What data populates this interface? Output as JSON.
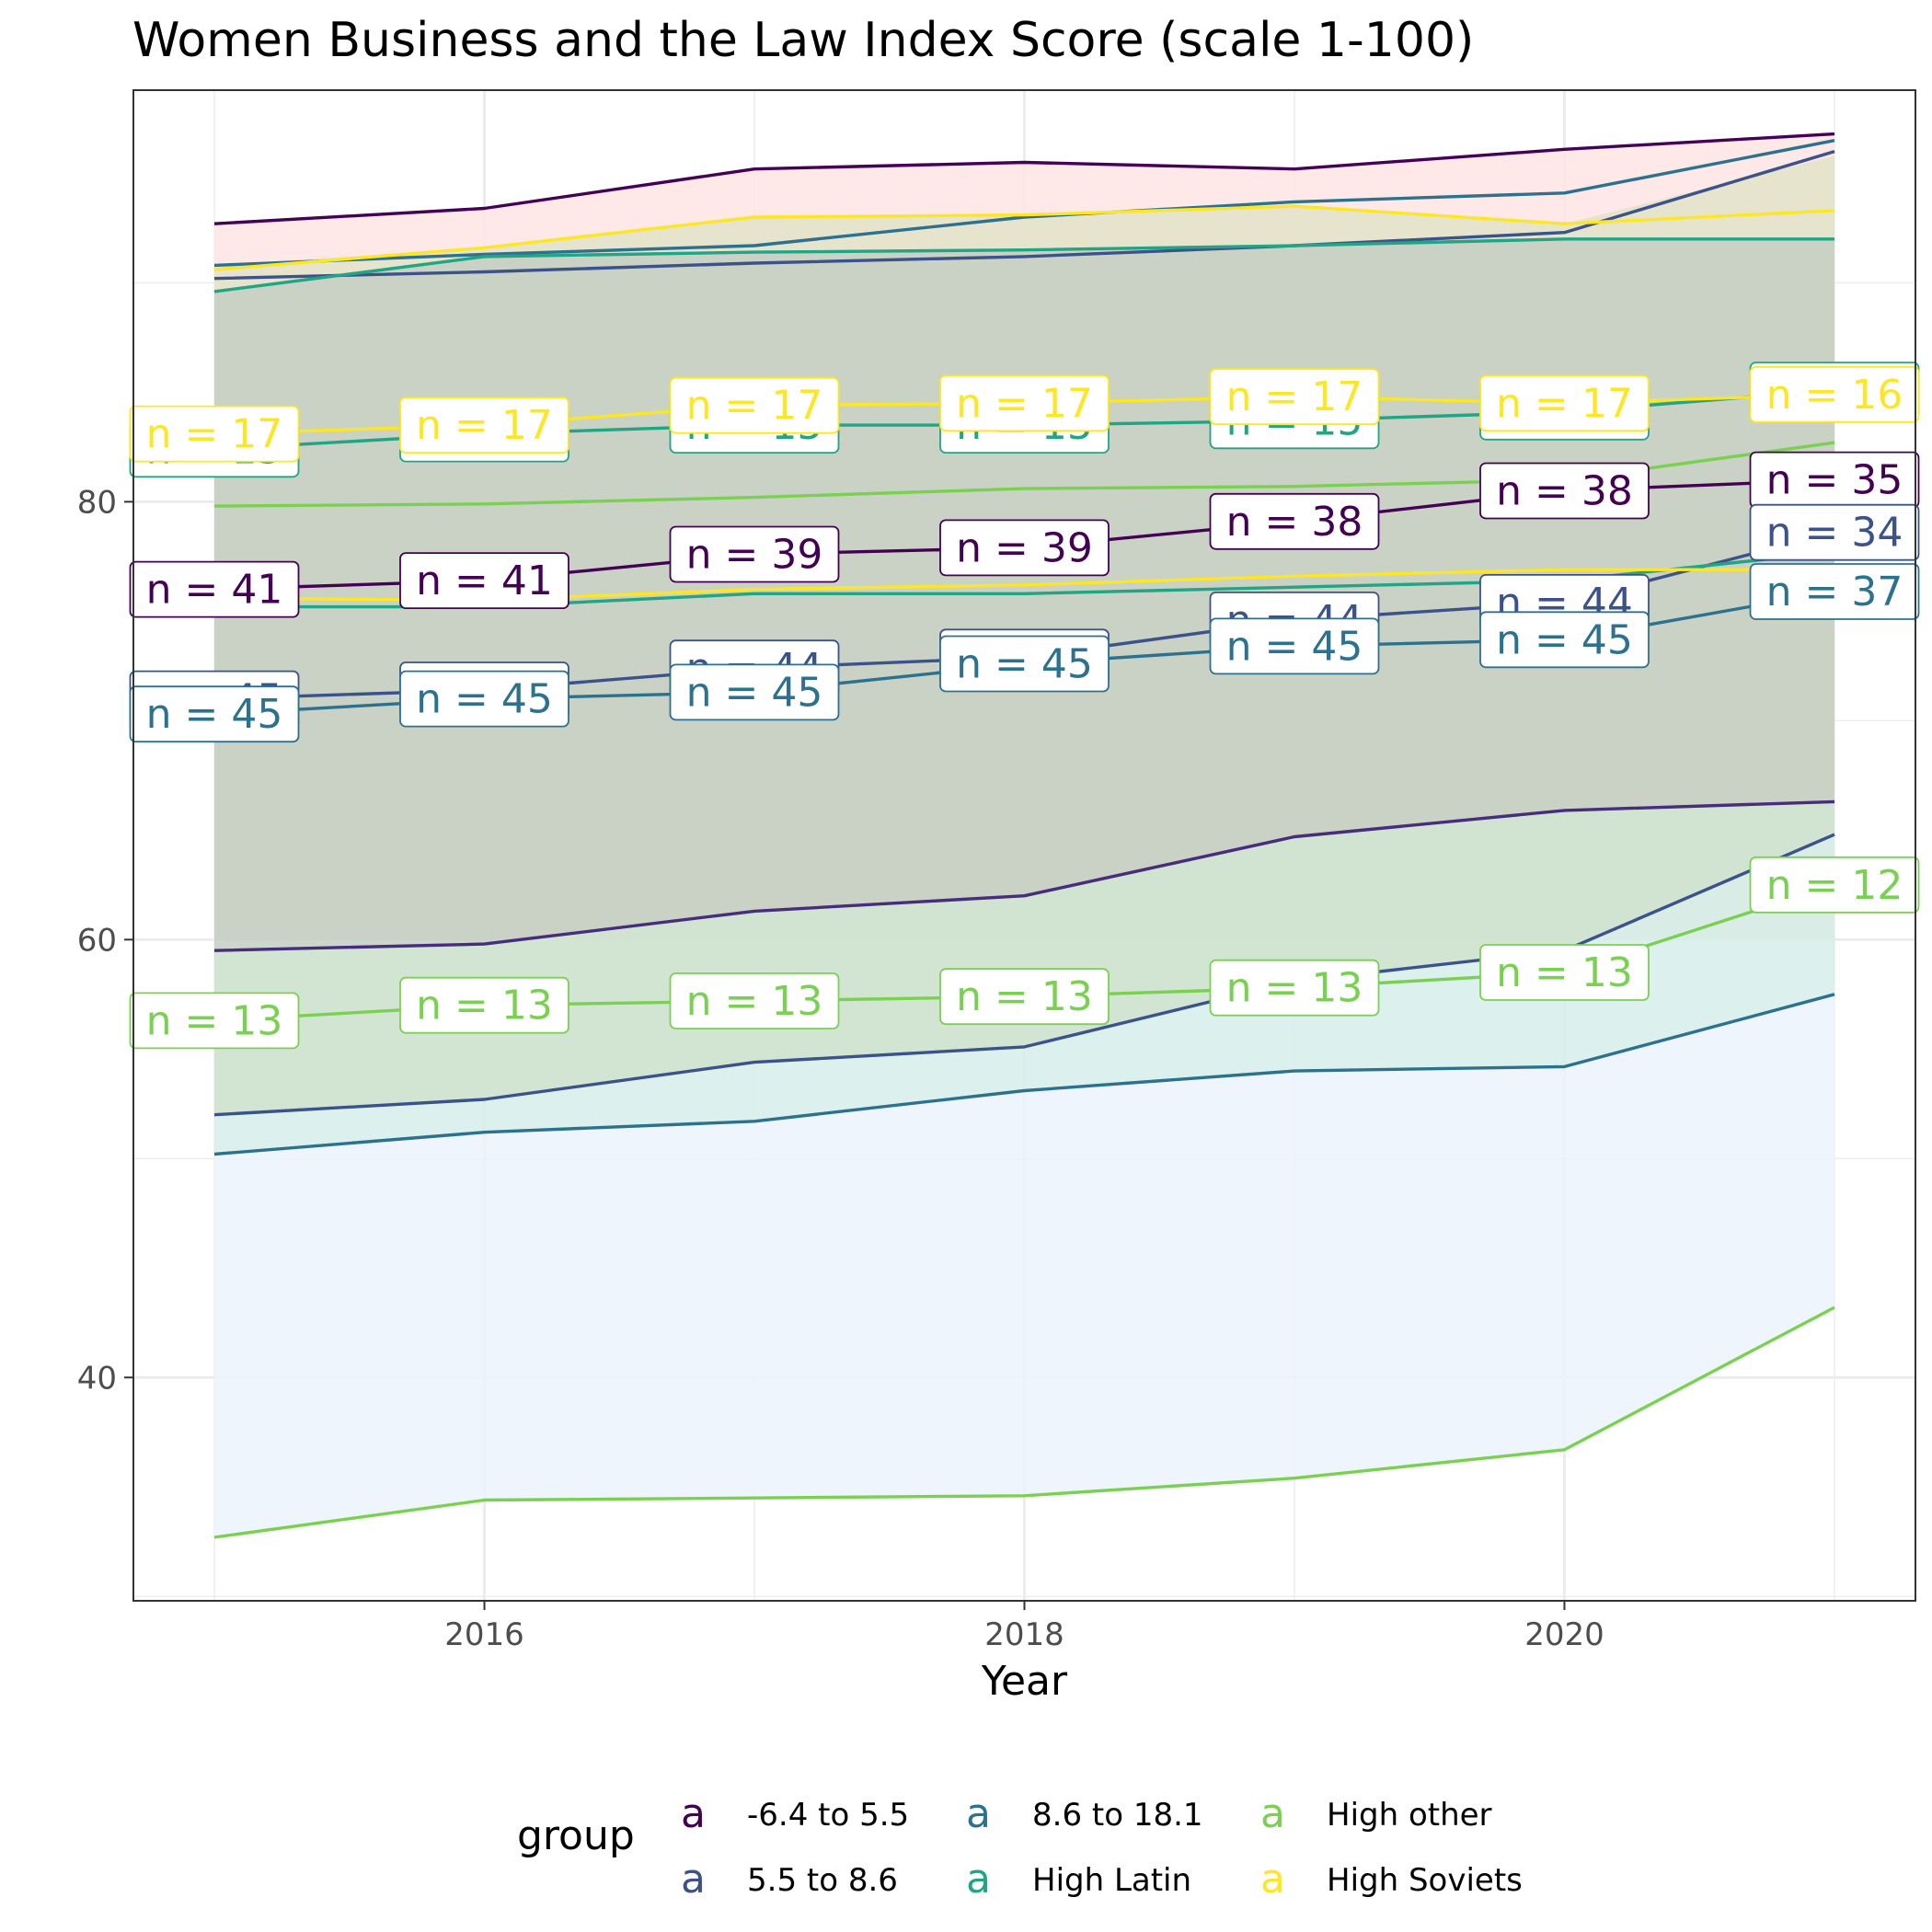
{
  "chart_data": {
    "type": "line",
    "title": "Women Business and the Law Index Score (scale 1-100)",
    "xlabel": "Year",
    "ylabel": "",
    "xlim": [
      2014.7,
      2021.3
    ],
    "ylim": [
      29.8,
      98.8
    ],
    "x_ticks": [
      2016,
      2018,
      2020
    ],
    "y_ticks": [
      40,
      60,
      80
    ],
    "grid": true,
    "legend": {
      "title": "group",
      "position": "bottom",
      "key_glyph": "a",
      "entries": [
        "-6.4 to 5.5",
        "5.5 to 8.6",
        "8.6 to 18.1",
        "High Latin",
        "High other",
        "High Soviets"
      ]
    },
    "x": [
      2015,
      2016,
      2017,
      2018,
      2019,
      2020,
      2021
    ],
    "ribbons": [
      {
        "color": "#FFE4E4",
        "upper": [
          92.7,
          93.4,
          95.2,
          95.5,
          95.2,
          96.1,
          96.8
        ],
        "lower": [
          60,
          60,
          60,
          60,
          60,
          60,
          60
        ]
      },
      {
        "color": "#E2E3C8",
        "upper": [
          90.8,
          91.6,
          93.0,
          93.1,
          93.5,
          92.7,
          95.8
        ],
        "lower": [
          60,
          60,
          60,
          60,
          60,
          60,
          60
        ]
      },
      {
        "color": "#C3CFC3",
        "upper": [
          89.6,
          91.2,
          91.4,
          91.5,
          91.7,
          92.0,
          92.0
        ],
        "lower": [
          52,
          52.7,
          54.4,
          55.1,
          58.1,
          59.5,
          64.8
        ]
      },
      {
        "color": "#D2E8D4",
        "upper": [
          59.5,
          59.8,
          61.3,
          62.0,
          64.7,
          65.9,
          66.3
        ],
        "lower": [
          52,
          52.7,
          54.4,
          55.1,
          58.1,
          59.5,
          64.8
        ]
      },
      {
        "color": "#D6EEEA",
        "upper": [
          52,
          52.7,
          54.4,
          55.1,
          58.1,
          59.5,
          64.8
        ],
        "lower": [
          50.2,
          51.2,
          51.7,
          53.1,
          54.0,
          54.2,
          57.5
        ]
      },
      {
        "color": "#ECF3FC",
        "upper": [
          50.2,
          51.2,
          51.7,
          53.1,
          54.0,
          54.2,
          57.5
        ],
        "lower": [
          32.7,
          34.4,
          34.5,
          34.6,
          35.4,
          36.7,
          43.2
        ]
      }
    ],
    "series": [
      {
        "group": "-6.4 to 5.5",
        "color": "#440154",
        "values": [
          92.7,
          93.4,
          95.2,
          95.5,
          95.2,
          96.1,
          96.8
        ]
      },
      {
        "group": "5.5 to 8.6",
        "color": "#3B528B",
        "values": [
          90.2,
          90.5,
          90.9,
          91.2,
          91.7,
          92.3,
          96.0
        ]
      },
      {
        "group": "8.6 to 18.1",
        "color": "#2C728E",
        "values": [
          90.8,
          91.3,
          91.7,
          93.0,
          93.7,
          94.1,
          96.5
        ]
      },
      {
        "group": "High Latin",
        "color": "#21A585",
        "values": [
          89.6,
          91.2,
          91.4,
          91.5,
          91.7,
          92.0,
          92.0
        ]
      },
      {
        "group": "High Soviets",
        "color": "#FDE725",
        "values": [
          90.6,
          91.6,
          93.0,
          93.1,
          93.5,
          92.7,
          93.3
        ]
      },
      {
        "group": "-6.4 to 5.5",
        "color": "#440154",
        "values": [
          76.0,
          76.4,
          77.6,
          77.9,
          79.1,
          80.5,
          81.0
        ],
        "labels": [
          "n = 41",
          "n = 41",
          "n = 39",
          "n = 39",
          "n = 38",
          "n = 38",
          "n = 35"
        ]
      },
      {
        "group": "5.5 to 8.6",
        "color": "#3B528B",
        "values": [
          71.0,
          71.4,
          72.4,
          72.9,
          74.6,
          75.4,
          78.6
        ],
        "labels": [
          "n = 45",
          "n = 45",
          "n = 44",
          "n = 45",
          "n = 44",
          "n = 44",
          "n = 34"
        ]
      },
      {
        "group": "8.6 to 18.1",
        "color": "#2C728E",
        "values": [
          70.3,
          71.0,
          71.3,
          72.6,
          73.4,
          73.7,
          75.9
        ],
        "labels": [
          "n = 45",
          "n = 45",
          "n = 45",
          "n = 45",
          "n = 45",
          "n = 45",
          "n = 37"
        ]
      },
      {
        "group": "High Latin",
        "color": "#21A585",
        "values": [
          82.4,
          83.1,
          83.5,
          83.5,
          83.7,
          84.1,
          85.1
        ],
        "labels": [
          "n = 15",
          "n = 15",
          "n = 15",
          "n = 15",
          "n = 15",
          "n = 15",
          "n = 16"
        ]
      },
      {
        "group": "High Latin",
        "color": "#21A585",
        "values": [
          75.2,
          75.2,
          75.8,
          75.8,
          76.1,
          76.4,
          77.7
        ]
      },
      {
        "group": "High other",
        "color": "#7AD151",
        "values": [
          79.8,
          79.9,
          80.2,
          80.6,
          80.7,
          81.0,
          82.7
        ]
      },
      {
        "group": "High Soviets",
        "color": "#FDE725",
        "values": [
          83.1,
          83.5,
          84.4,
          84.5,
          84.8,
          84.5,
          84.9
        ],
        "labels": [
          "n = 17",
          "n = 17",
          "n = 17",
          "n = 17",
          "n = 17",
          "n = 17",
          "n = 16"
        ]
      },
      {
        "group": "High Soviets",
        "color": "#FDE725",
        "values": [
          75.6,
          75.5,
          76.0,
          76.2,
          76.6,
          76.9,
          76.9
        ]
      },
      {
        "group": "-6.4 to 5.5",
        "color": "#472D7B",
        "values": [
          59.5,
          59.8,
          61.3,
          62.0,
          64.7,
          65.9,
          66.3
        ]
      },
      {
        "group": "5.5 to 8.6",
        "color": "#3B528B",
        "values": [
          52.0,
          52.7,
          54.4,
          55.1,
          58.1,
          59.5,
          64.8
        ]
      },
      {
        "group": "High other",
        "color": "#7AD151",
        "values": [
          56.3,
          57.0,
          57.2,
          57.4,
          57.8,
          58.5,
          62.5
        ],
        "labels": [
          "n = 13",
          "n = 13",
          "n = 13",
          "n = 13",
          "n = 13",
          "n = 13",
          "n = 12"
        ]
      },
      {
        "group": "8.6 to 18.1",
        "color": "#2C728E",
        "values": [
          50.2,
          51.2,
          51.7,
          53.1,
          54.0,
          54.2,
          57.5
        ]
      },
      {
        "group": "High other",
        "color": "#7AD151",
        "values": [
          32.7,
          34.4,
          34.5,
          34.6,
          35.4,
          36.7,
          43.2
        ]
      }
    ]
  }
}
